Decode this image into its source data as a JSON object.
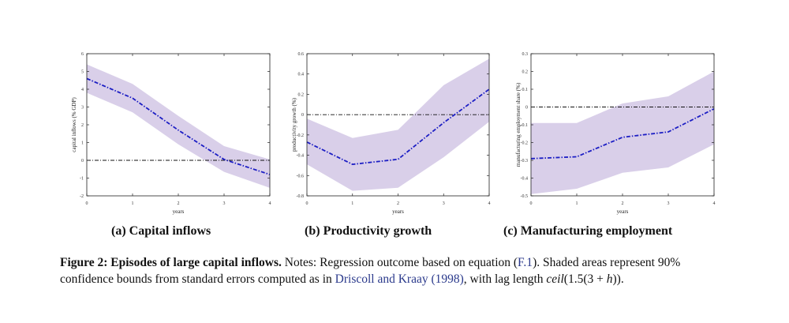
{
  "chart_data": [
    {
      "type": "line",
      "panel_label": "(a)",
      "caption": "Capital inflows",
      "xlabel": "years",
      "ylabel": "capital inflows (% GDP)",
      "xlim": [
        0,
        4
      ],
      "ylim": [
        -2,
        6
      ],
      "xticks": [
        0,
        1,
        2,
        3,
        4
      ],
      "yticks": [
        -2,
        -1,
        0,
        1,
        2,
        3,
        4,
        5,
        6
      ],
      "reference_line": 0,
      "x": [
        0,
        1,
        2,
        3,
        4
      ],
      "series": [
        {
          "values": [
            4.6,
            3.5,
            1.7,
            0.05,
            -0.8
          ],
          "lower": [
            3.8,
            2.7,
            0.9,
            -0.65,
            -1.55
          ],
          "upper": [
            5.4,
            4.3,
            2.5,
            0.8,
            0.05
          ]
        }
      ],
      "grid": false
    },
    {
      "type": "line",
      "panel_label": "(b)",
      "caption": "Productivity growth",
      "xlabel": "years",
      "ylabel": "productivity growth (%)",
      "xlim": [
        0,
        4
      ],
      "ylim": [
        -0.8,
        0.6
      ],
      "xticks": [
        0,
        1,
        2,
        3,
        4
      ],
      "yticks": [
        -0.8,
        -0.6,
        -0.4,
        -0.2,
        0,
        0.2,
        0.4,
        0.6
      ],
      "ytick_labels": [
        "-0.8",
        "-0.6",
        "-0.4",
        "-0.2",
        "0",
        "0.2",
        "0.4",
        "0.6"
      ],
      "reference_line": 0,
      "x": [
        0,
        1,
        2,
        3,
        4
      ],
      "series": [
        {
          "values": [
            -0.27,
            -0.49,
            -0.44,
            -0.08,
            0.25
          ],
          "lower": [
            -0.49,
            -0.75,
            -0.72,
            -0.42,
            -0.07
          ],
          "upper": [
            -0.04,
            -0.23,
            -0.15,
            0.29,
            0.55
          ]
        }
      ],
      "grid": false
    },
    {
      "type": "line",
      "panel_label": "(c)",
      "caption": "Manufacturing employment",
      "xlabel": "years",
      "ylabel": "manufacturing employment share (%)",
      "xlim": [
        0,
        4
      ],
      "ylim": [
        -0.5,
        0.3
      ],
      "xticks": [
        0,
        1,
        2,
        3,
        4
      ],
      "yticks": [
        -0.5,
        -0.4,
        -0.3,
        -0.2,
        -0.1,
        0,
        0.1,
        0.2,
        0.3
      ],
      "ytick_labels": [
        "-0.5",
        "-0.4",
        "-0.3",
        "-0.2",
        "-0.1",
        "0",
        "0.1",
        "0.2",
        "0.3"
      ],
      "reference_line": 0,
      "x": [
        0,
        1,
        2,
        3,
        4
      ],
      "series": [
        {
          "values": [
            -0.29,
            -0.28,
            -0.17,
            -0.14,
            -0.01
          ],
          "lower": [
            -0.49,
            -0.46,
            -0.37,
            -0.34,
            -0.21
          ],
          "upper": [
            -0.09,
            -0.09,
            0.02,
            0.06,
            0.2
          ]
        }
      ],
      "grid": false
    }
  ],
  "colors": {
    "band": "#d9cfe9",
    "line": "#1c1ec4",
    "reference": "#111111"
  },
  "caption": {
    "label": "Figure 2: Episodes of large capital inflows.",
    "t1": " Notes: Regression outcome based on equation (",
    "ref_eq": "F.1",
    "t2": "). Shaded areas represent 90% confidence bounds from standard errors computed as in ",
    "ref_cite": "Driscoll and Kraay (1998)",
    "t3": ", with lag length ",
    "math": "ceil",
    "t4": "(1.5(3 + ",
    "math_h": "h",
    "t5": "))."
  }
}
